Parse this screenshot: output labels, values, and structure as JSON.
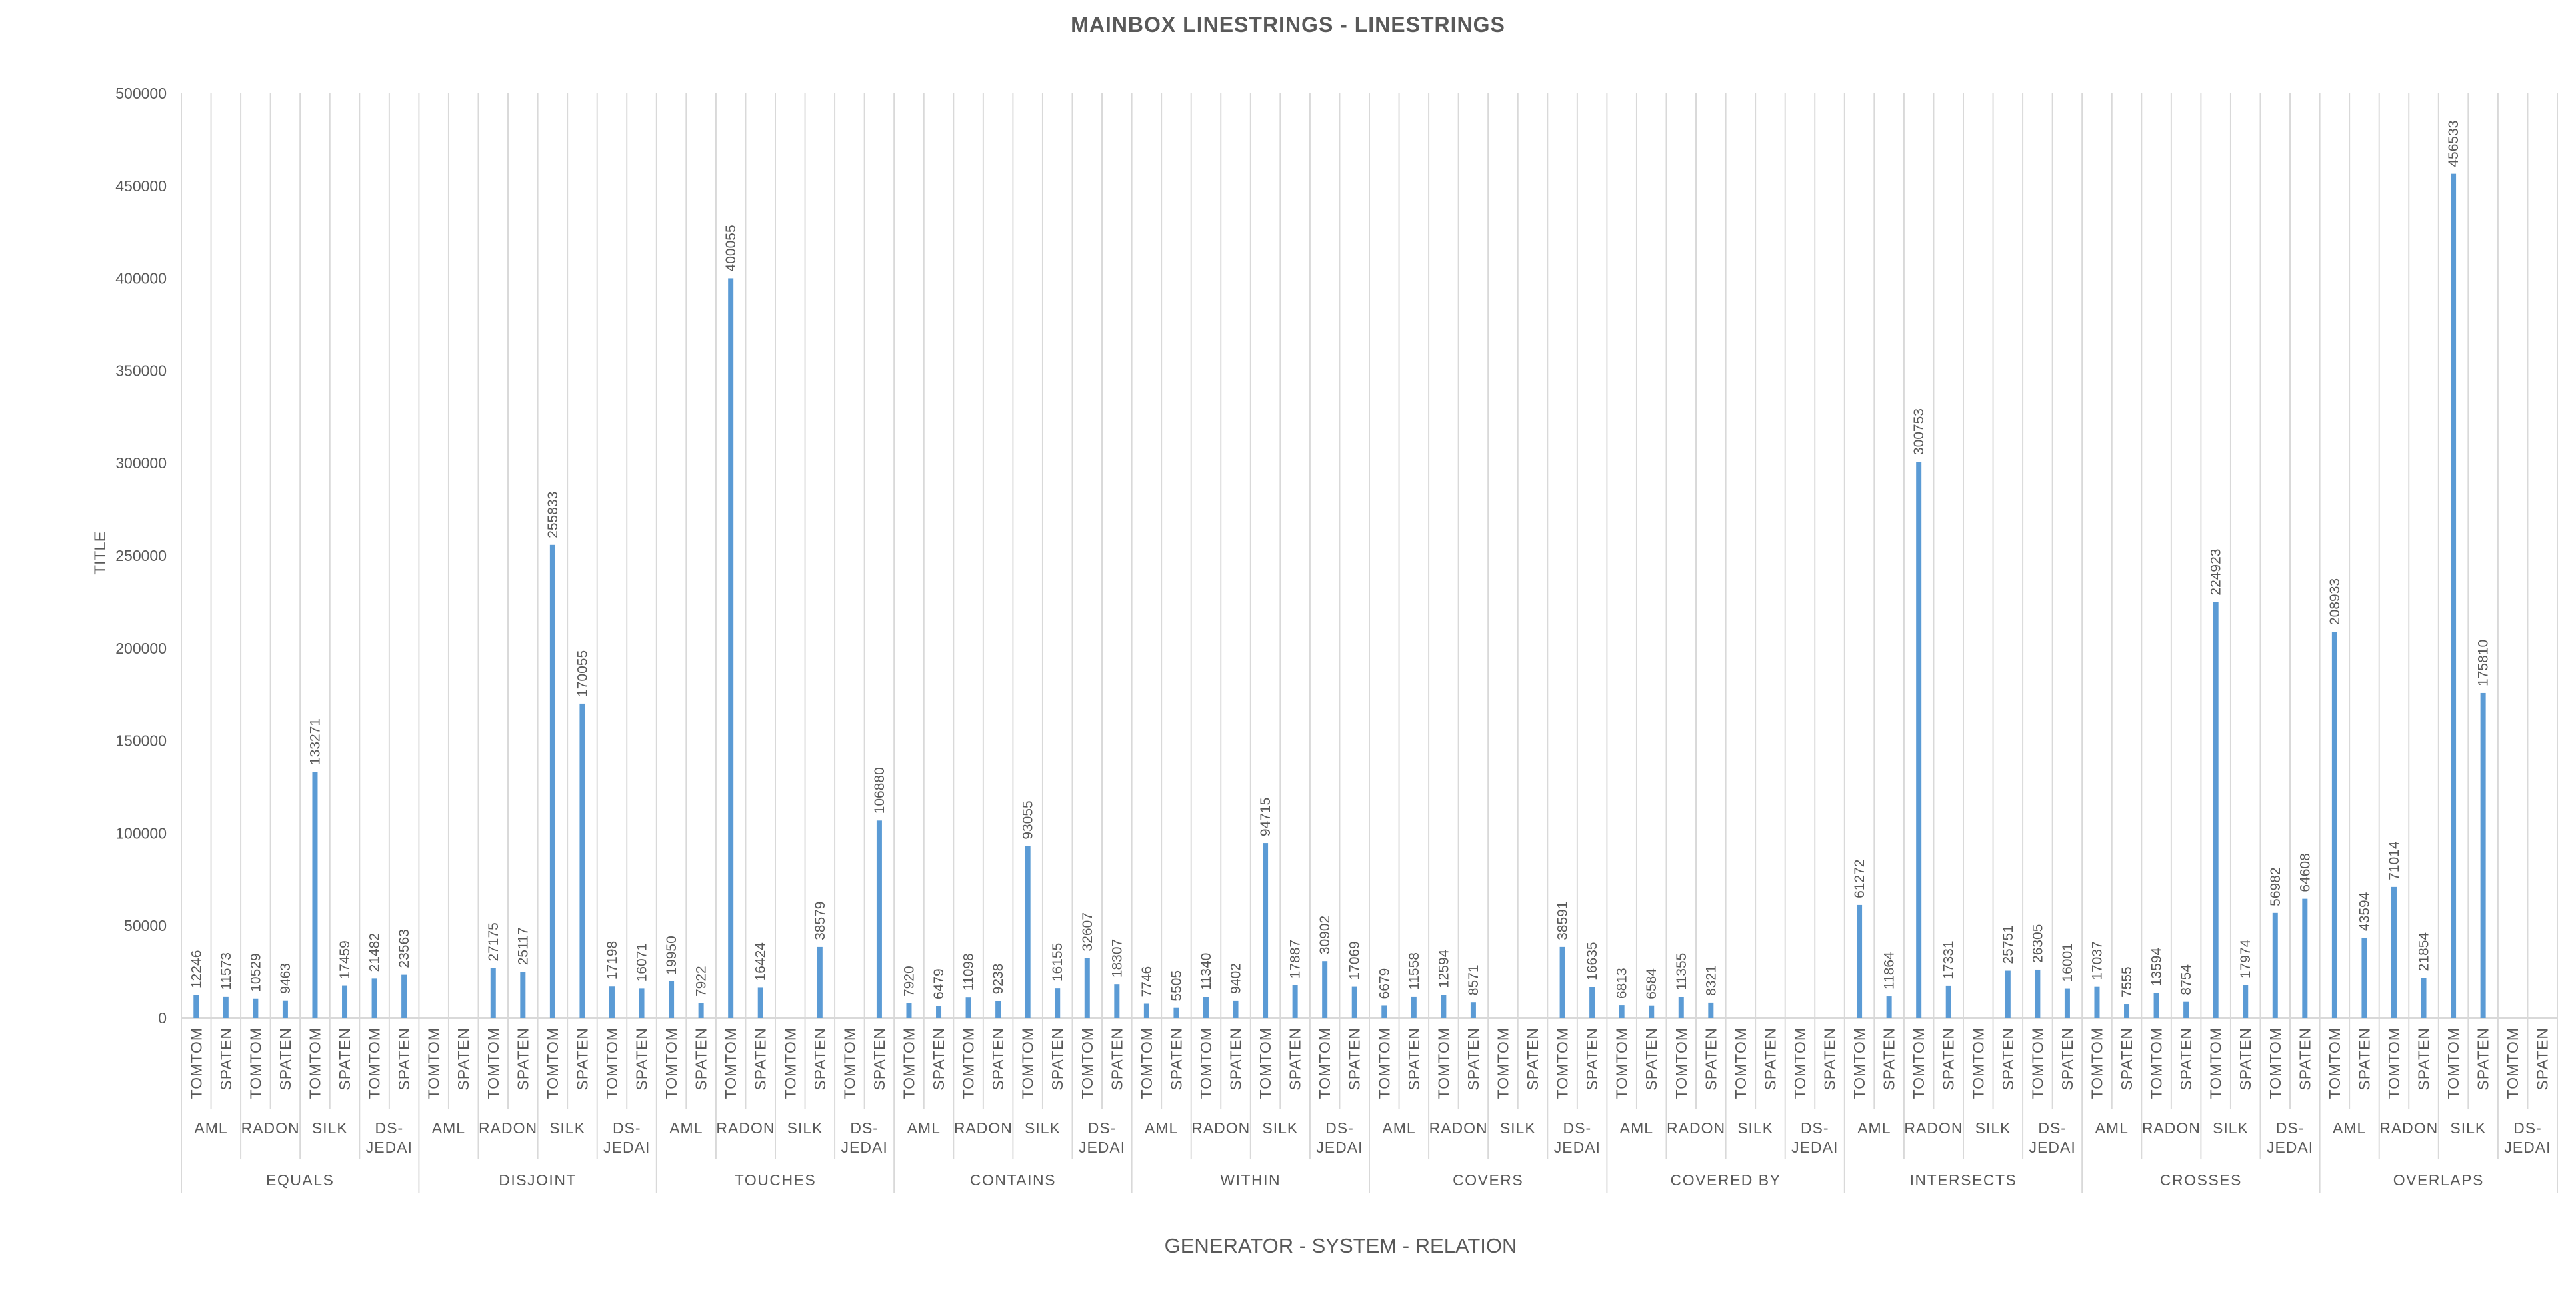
{
  "chart_data": {
    "type": "bar",
    "title": "MAINBOX LINESTRINGS - LINESTRINGS",
    "xlabel": "GENERATOR - SYSTEM - RELATION",
    "ylabel": "TITLE",
    "ylim": [
      0,
      500000
    ],
    "yticks": [
      "0",
      "50000",
      "100000",
      "150000",
      "200000",
      "250000",
      "300000",
      "350000",
      "400000",
      "450000",
      "500000"
    ],
    "grid": "vertical category separators",
    "legend": "none",
    "bar_color": "#5B9BD5",
    "relations": [
      "EQUALS",
      "DISJOINT",
      "TOUCHES",
      "CONTAINS",
      "WITHIN",
      "COVERS",
      "COVERED BY",
      "INTERSECTS",
      "CROSSES",
      "OVERLAPS"
    ],
    "systems": [
      "AML",
      "RADON",
      "SILK",
      "DS-JEDAI"
    ],
    "generators": [
      "TOMTOM",
      "SPATEN"
    ],
    "values": [
      [
        [
          12246,
          11573
        ],
        [
          10529,
          9463
        ],
        [
          133271,
          17459
        ],
        [
          21482,
          23563
        ]
      ],
      [
        [
          null,
          null
        ],
        [
          27175,
          25117
        ],
        [
          255833,
          170055
        ],
        [
          17198,
          16071
        ]
      ],
      [
        [
          19950,
          7922
        ],
        [
          400055,
          16424
        ],
        [
          null,
          38579
        ],
        [
          null,
          106880
        ]
      ],
      [
        [
          7920,
          6479
        ],
        [
          11098,
          9238
        ],
        [
          93055,
          16155
        ],
        [
          32607,
          18307
        ]
      ],
      [
        [
          7746,
          5505
        ],
        [
          11340,
          9402
        ],
        [
          94715,
          17887
        ],
        [
          30902,
          17069
        ]
      ],
      [
        [
          6679,
          11558
        ],
        [
          12594,
          8571
        ],
        [
          null,
          null
        ],
        [
          38591,
          16635
        ]
      ],
      [
        [
          6813,
          6584
        ],
        [
          11355,
          8321
        ],
        [
          null,
          null
        ],
        [
          null,
          null
        ]
      ],
      [
        [
          61272,
          11864
        ],
        [
          300753,
          17331
        ],
        [
          null,
          25751
        ],
        [
          26305,
          16001
        ]
      ],
      [
        [
          17037,
          7555
        ],
        [
          13594,
          8754
        ],
        [
          224923,
          17974
        ],
        [
          56982,
          64608
        ]
      ],
      [
        [
          208933,
          43594
        ],
        [
          71014,
          21854
        ],
        [
          456533,
          175810
        ],
        [
          null,
          null
        ]
      ]
    ]
  }
}
